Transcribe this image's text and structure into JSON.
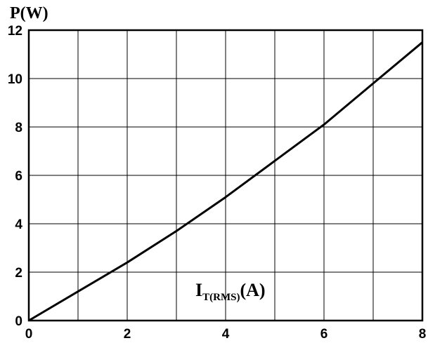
{
  "chart_data": {
    "type": "line",
    "title": "",
    "ylabel": "P(W)",
    "xlabel": {
      "main": "I",
      "sub": "T(RMS)",
      "unit": "(A)"
    },
    "xlim": [
      0,
      8
    ],
    "ylim": [
      0,
      12
    ],
    "xticks": [
      0,
      2,
      4,
      6,
      8
    ],
    "yticks": [
      0,
      2,
      4,
      6,
      8,
      10,
      12
    ],
    "x_gridlines": [
      0,
      1,
      2,
      3,
      4,
      5,
      6,
      7,
      8
    ],
    "y_gridlines": [
      0,
      2,
      4,
      6,
      8,
      10,
      12
    ],
    "grid": true,
    "line_color": "#000000",
    "series": [
      {
        "x": [
          0,
          1,
          2,
          3,
          4,
          5,
          6,
          7,
          8
        ],
        "values": [
          0,
          1.2,
          2.4,
          3.7,
          5.1,
          6.6,
          8.1,
          9.8,
          11.5
        ]
      }
    ]
  }
}
